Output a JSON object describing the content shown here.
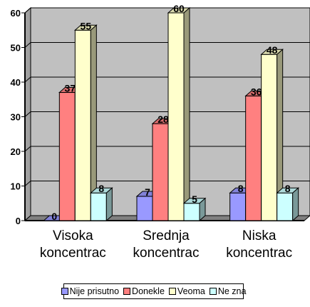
{
  "chart_data": {
    "type": "bar",
    "style": "3d-clustered",
    "categories": [
      "Visoka koncentrac",
      "Srednja koncentrac",
      "Niska koncentrac"
    ],
    "category_lines": [
      [
        "Visoka",
        "koncentrac"
      ],
      [
        "Srednja",
        "koncentrac"
      ],
      [
        "Niska",
        "koncentrac"
      ]
    ],
    "series": [
      {
        "name": "Nije prisutno",
        "values": [
          0,
          7,
          8
        ],
        "color": "#9999ff"
      },
      {
        "name": "Donekle",
        "values": [
          37,
          28,
          36
        ],
        "color": "#ff8080"
      },
      {
        "name": "Veoma",
        "values": [
          55,
          60,
          48
        ],
        "color": "#ffffcc"
      },
      {
        "name": "Ne zna",
        "values": [
          8,
          5,
          8
        ],
        "color": "#ccffff"
      }
    ],
    "ylim": [
      0,
      60
    ],
    "yticks": [
      0,
      10,
      20,
      30,
      40,
      50,
      60
    ],
    "grid": true,
    "wall_color": "#c0c0c0",
    "legend_position": "bottom",
    "data_labels": true
  }
}
